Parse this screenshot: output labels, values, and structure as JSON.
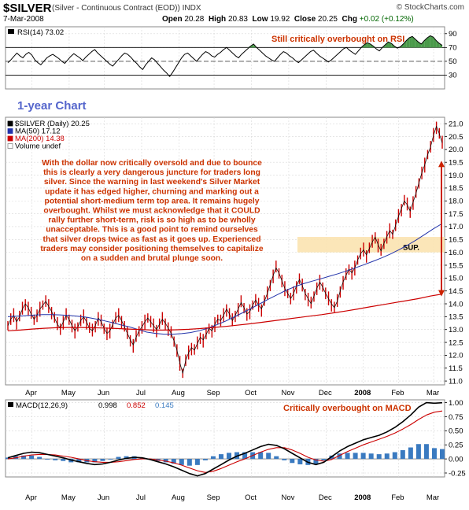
{
  "header": {
    "symbol": "$SILVER",
    "description": "(Silver - Continuous Contract (EOD)) INDX",
    "date": "7-Mar-2008",
    "open_label": "Open",
    "open": "20.28",
    "high_label": "High",
    "high": "20.83",
    "low_label": "Low",
    "low": "19.92",
    "close_label": "Close",
    "close": "20.25",
    "chg_label": "Chg",
    "chg": "+0.02 (+0.12%)",
    "brand": "© StockCharts.com"
  },
  "colors": {
    "price": "#cc0000",
    "ma50": "#2233aa",
    "ma200": "#cc0000",
    "rsi": "#000000",
    "macd": "#000000",
    "signal": "#cc0000",
    "histogram": "#3a7ac0",
    "annotation": "#cc3300",
    "support_zone": "#fbe3b0",
    "title_blue": "#5566cc"
  },
  "chart_data": [
    {
      "type": "line",
      "panel": "rsi",
      "label": "RSI(14) 73.02",
      "ylim": [
        10,
        100
      ],
      "y_ticks": [
        30,
        50,
        70,
        90
      ],
      "series": [
        {
          "name": "RSI(14)",
          "values": [
            48,
            52,
            57,
            62,
            58,
            55,
            60,
            63,
            59,
            52,
            48,
            45,
            50,
            55,
            58,
            60,
            57,
            54,
            50,
            47,
            52,
            57,
            61,
            58,
            55,
            51,
            56,
            60,
            64,
            67,
            62,
            58,
            54,
            50,
            46,
            43,
            48,
            53,
            58,
            62,
            60,
            56,
            51,
            47,
            42,
            38,
            45,
            50,
            55,
            52,
            47,
            42,
            37,
            33,
            28,
            34,
            41,
            48,
            55,
            60,
            62,
            58,
            54,
            50,
            55,
            60,
            64,
            62,
            58,
            56,
            60,
            63,
            67,
            70,
            66,
            62,
            58,
            55,
            60,
            64,
            68,
            72,
            75,
            70,
            66,
            62,
            58,
            55,
            52,
            50,
            55,
            60,
            64,
            62,
            58,
            55,
            51,
            48,
            52,
            56,
            60,
            64,
            66,
            62,
            58,
            55,
            52,
            49,
            52,
            56,
            60,
            64,
            68,
            70,
            66,
            63,
            60,
            65,
            70,
            74,
            77,
            75,
            72,
            68,
            65,
            70,
            74,
            78,
            76,
            72,
            69,
            71,
            75,
            80,
            84,
            86,
            82,
            78,
            75,
            80,
            84,
            87,
            85,
            80,
            76,
            73
          ]
        }
      ],
      "annotation": "Still critically overbought on RSI"
    },
    {
      "type": "line",
      "panel": "price",
      "title_note": "1-year Chart",
      "legend": [
        "$SILVER (Daily) 20.25",
        "MA(50) 17.12",
        "MA(200) 14.38",
        "Volume undef"
      ],
      "x_tick_labels": [
        "Apr",
        "May",
        "Jun",
        "Jul",
        "Aug",
        "Sep",
        "Oct",
        "Nov",
        "Dec",
        "2008",
        "Feb",
        "Mar"
      ],
      "y_ticks": [
        11.0,
        11.5,
        12.0,
        12.5,
        13.0,
        13.5,
        14.0,
        14.5,
        15.0,
        15.5,
        16.0,
        16.5,
        17.0,
        17.5,
        18.0,
        18.5,
        19.0,
        19.5,
        20.0,
        20.5,
        21.0
      ],
      "ylim": [
        10.85,
        21.25
      ],
      "series": [
        {
          "name": "$SILVER",
          "values": [
            13.15,
            13.4,
            13.55,
            13.3,
            13.5,
            13.8,
            14.0,
            13.85,
            13.6,
            13.4,
            13.55,
            13.8,
            13.95,
            14.1,
            13.9,
            13.7,
            13.45,
            13.2,
            13.05,
            13.3,
            13.55,
            13.4,
            13.15,
            12.95,
            13.1,
            13.35,
            13.5,
            13.3,
            13.05,
            12.95,
            13.15,
            13.45,
            13.3,
            13.05,
            12.85,
            12.95,
            13.2,
            13.45,
            13.55,
            13.35,
            13.1,
            12.85,
            12.6,
            12.4,
            12.7,
            12.95,
            13.1,
            13.3,
            13.45,
            13.3,
            13.15,
            13.0,
            13.2,
            13.4,
            13.25,
            13.05,
            12.85,
            12.55,
            12.2,
            11.7,
            11.3,
            11.8,
            12.1,
            12.3,
            12.2,
            12.45,
            12.7,
            12.6,
            12.8,
            13.05,
            12.95,
            13.2,
            13.4,
            13.35,
            13.55,
            13.8,
            13.6,
            13.35,
            13.55,
            13.8,
            14.05,
            13.85,
            13.6,
            13.7,
            13.95,
            14.15,
            13.95,
            13.8,
            14.1,
            14.4,
            14.75,
            15.1,
            15.4,
            15.2,
            14.9,
            14.6,
            14.4,
            14.2,
            14.4,
            14.7,
            14.95,
            14.7,
            14.4,
            14.2,
            14.0,
            14.3,
            14.6,
            14.85,
            14.65,
            14.4,
            14.2,
            14.0,
            13.85,
            14.1,
            14.5,
            14.85,
            15.1,
            15.35,
            15.2,
            15.4,
            15.7,
            15.95,
            16.1,
            15.9,
            16.15,
            16.4,
            16.6,
            16.3,
            16.05,
            16.35,
            16.6,
            16.85,
            16.7,
            17.05,
            17.4,
            17.7,
            18.0,
            17.85,
            17.6,
            17.95,
            18.3,
            18.7,
            19.1,
            19.4,
            19.8,
            20.1,
            20.55,
            20.9,
            20.6,
            20.25
          ]
        },
        {
          "name": "MA(50)",
          "values": [
            13.5,
            13.52,
            13.54,
            13.56,
            13.58,
            13.58,
            13.57,
            13.55,
            13.52,
            13.48,
            13.42,
            13.35,
            13.27,
            13.18,
            13.1,
            13.0,
            12.9,
            12.85,
            12.82,
            12.82,
            12.84,
            12.88,
            12.95,
            13.05,
            13.18,
            13.32,
            13.48,
            13.65,
            13.82,
            14.0,
            14.18,
            14.35,
            14.52,
            14.66,
            14.78,
            14.88,
            14.97,
            15.07,
            15.17,
            15.28,
            15.4,
            15.52,
            15.65,
            15.78,
            15.93,
            16.1,
            16.28,
            16.48,
            16.7,
            16.92,
            17.12
          ]
        },
        {
          "name": "MA(200)",
          "values": [
            12.95,
            12.98,
            13.02,
            13.05,
            13.07,
            13.08,
            13.08,
            13.07,
            13.06,
            13.04,
            13.02,
            13.0,
            12.98,
            12.98,
            12.99,
            13.01,
            13.04,
            13.08,
            13.12,
            13.17,
            13.22,
            13.28,
            13.34,
            13.4,
            13.46,
            13.52,
            13.58,
            13.65,
            13.72,
            13.8,
            13.88,
            13.96,
            14.04,
            14.12,
            14.2,
            14.3,
            14.38
          ]
        }
      ],
      "support": {
        "label": "SUP.",
        "from": 16.0,
        "to": 16.6
      },
      "commentary": [
        "With the dollar now critically oversold and due to bounce",
        "this is clearly a very dangerous juncture for traders long",
        "silver. Since the warning in last weekend's Silver Market",
        "update it has edged higher, churning and marking out a",
        "potential short-medium term top area. It remains hugely",
        "overbought. Whilst we must acknowledge that it COULD",
        "rally further short-term, risk is so high as to be wholly",
        "unacceptable. This is a good point to remind ourselves",
        "that silver drops twice as fast as it goes up. Experienced",
        "traders may consider positioning themselves to capitalize",
        "on a sudden and brutal plunge soon."
      ]
    },
    {
      "type": "line",
      "panel": "macd",
      "label_prefix": "MACD(12,26,9)",
      "label_values": [
        "0.998",
        "0.852",
        "0.145"
      ],
      "ylim": [
        -0.32,
        1.05
      ],
      "y_ticks": [
        -0.25,
        0.0,
        0.25,
        0.5,
        0.75,
        1.0
      ],
      "series": [
        {
          "name": "MACD",
          "values": [
            0.02,
            0.06,
            0.1,
            0.12,
            0.11,
            0.08,
            0.05,
            0.02,
            -0.02,
            -0.05,
            -0.08,
            -0.1,
            -0.09,
            -0.06,
            -0.02,
            0.01,
            0.03,
            0.02,
            -0.01,
            -0.05,
            -0.09,
            -0.14,
            -0.2,
            -0.26,
            -0.3,
            -0.26,
            -0.18,
            -0.1,
            -0.02,
            0.05,
            0.1,
            0.16,
            0.22,
            0.26,
            0.24,
            0.18,
            0.1,
            0.02,
            -0.06,
            -0.1,
            -0.06,
            0.04,
            0.14,
            0.22,
            0.28,
            0.34,
            0.38,
            0.42,
            0.48,
            0.56,
            0.66,
            0.78,
            0.92,
            1.0,
            0.99,
            0.998
          ]
        },
        {
          "name": "Signal",
          "values": [
            0.0,
            0.02,
            0.05,
            0.07,
            0.08,
            0.08,
            0.07,
            0.05,
            0.03,
            0.0,
            -0.03,
            -0.05,
            -0.06,
            -0.06,
            -0.05,
            -0.03,
            -0.01,
            0.0,
            0.0,
            -0.02,
            -0.04,
            -0.07,
            -0.11,
            -0.16,
            -0.21,
            -0.24,
            -0.22,
            -0.17,
            -0.11,
            -0.05,
            0.0,
            0.06,
            0.12,
            0.17,
            0.2,
            0.2,
            0.16,
            0.1,
            0.03,
            -0.02,
            -0.04,
            -0.01,
            0.06,
            0.13,
            0.19,
            0.25,
            0.3,
            0.35,
            0.4,
            0.46,
            0.53,
            0.61,
            0.7,
            0.78,
            0.83,
            0.852
          ]
        }
      ],
      "annotation": "Critically overbought on MACD",
      "x_tick_labels": [
        "Apr",
        "May",
        "Jun",
        "Jul",
        "Aug",
        "Sep",
        "Oct",
        "Nov",
        "Dec",
        "2008",
        "Feb",
        "Mar"
      ]
    }
  ]
}
